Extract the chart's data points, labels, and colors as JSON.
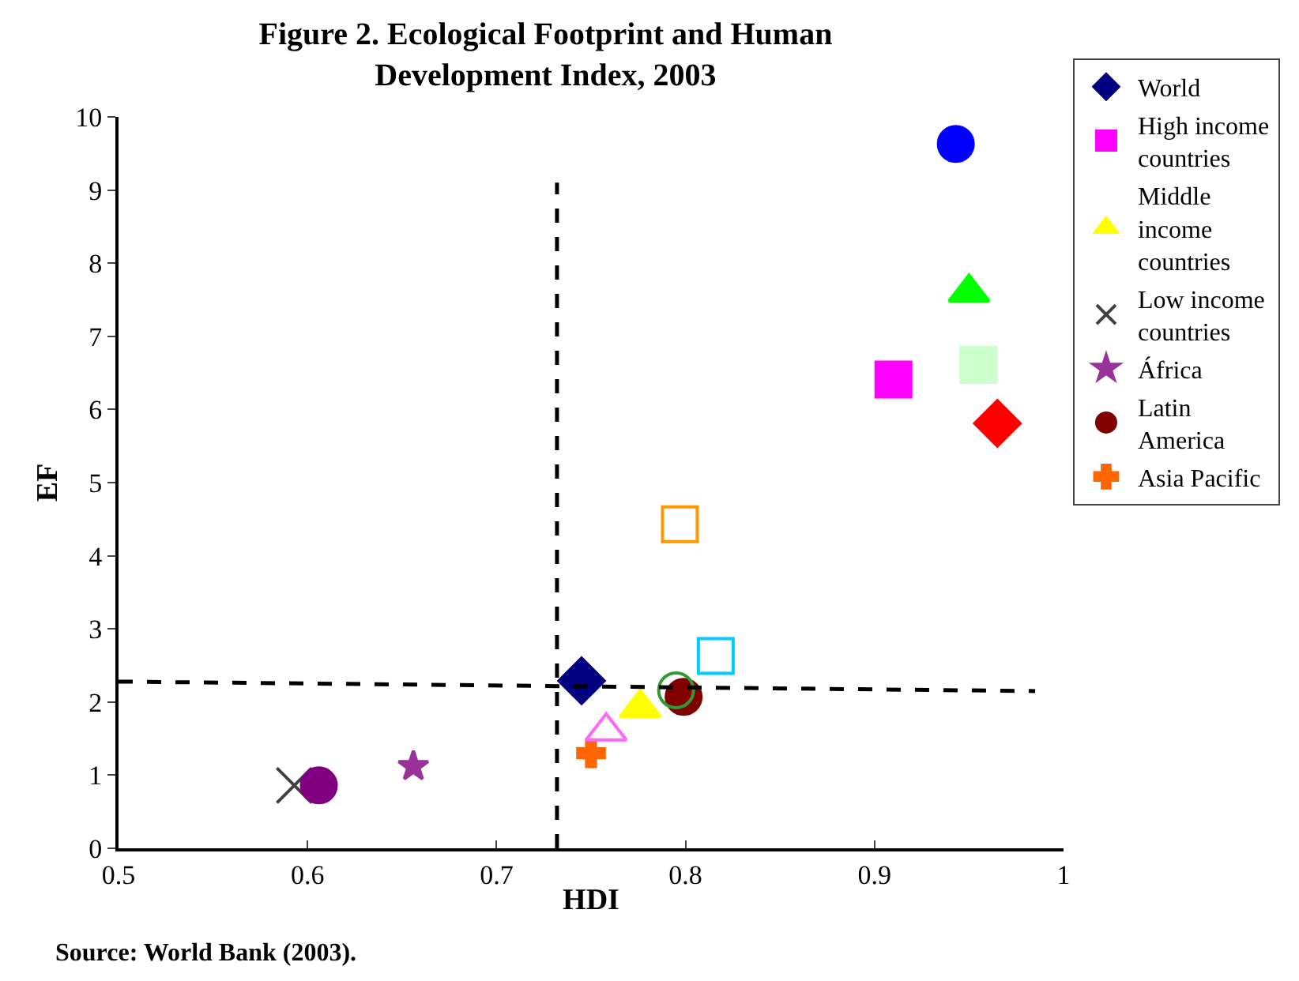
{
  "chart_data": {
    "type": "scatter",
    "title": "Figure 2. Ecological Footprint and Human Development Index, 2003",
    "xlabel": "HDI",
    "ylabel": "EF",
    "annotations": [
      "Source: World Bank (2003)."
    ],
    "xlim": [
      0.5,
      1.0
    ],
    "xticks": [
      0.5,
      0.6,
      0.7,
      0.8,
      0.9,
      1
    ],
    "ylim": [
      0,
      10
    ],
    "yticks": [
      0,
      1,
      2,
      3,
      4,
      5,
      6,
      7,
      8,
      9,
      10
    ],
    "legend": "right",
    "series": [
      {
        "name": "World",
        "color": "#000080",
        "marker": "diamond",
        "x": [
          0.745
        ],
        "values": [
          2.29
        ]
      },
      {
        "name": "High income countries",
        "color": "#ff00ff",
        "marker": "square",
        "x": [
          0.91
        ],
        "values": [
          6.41
        ]
      },
      {
        "name": "Middle income countries",
        "color": "#ffff00",
        "marker": "triangle",
        "x": [
          0.776
        ],
        "values": [
          1.92
        ]
      },
      {
        "name": "Low income countries",
        "color": "#404040",
        "marker": "x",
        "x": [
          0.593
        ],
        "values": [
          0.86
        ]
      },
      {
        "name": "África",
        "color": "#993399",
        "marker": "star",
        "x": [
          0.656
        ],
        "values": [
          1.12
        ]
      },
      {
        "name": "Latin America",
        "color": "#800000",
        "marker": "circle",
        "x": [
          0.799
        ],
        "values": [
          2.07
        ]
      },
      {
        "name": "Asia Pacific",
        "color": "#ff6600",
        "marker": "cross",
        "x": [
          0.75
        ],
        "values": [
          1.3
        ]
      },
      {
        "color": "#0000ff",
        "marker": "circle",
        "x": [
          0.943
        ],
        "values": [
          9.63
        ]
      },
      {
        "color": "#00ff00",
        "marker": "triangle",
        "x": [
          0.95
        ],
        "values": [
          7.6
        ]
      },
      {
        "color": "#ccffcc",
        "marker": "square",
        "x": [
          0.955
        ],
        "values": [
          6.61
        ]
      },
      {
        "color": "#ff0000",
        "marker": "diamond",
        "x": [
          0.965
        ],
        "values": [
          5.81
        ]
      },
      {
        "color": "#ff9900",
        "marker": "square-open",
        "x": [
          0.797
        ],
        "values": [
          4.43
        ]
      },
      {
        "color": "#00ccff",
        "marker": "square-open",
        "x": [
          0.816
        ],
        "values": [
          2.63
        ]
      },
      {
        "color": "#339933",
        "marker": "circle-open",
        "x": [
          0.795
        ],
        "values": [
          2.16
        ]
      },
      {
        "color": "#ff66ff",
        "marker": "triangle-open",
        "x": [
          0.758
        ],
        "values": [
          1.6
        ]
      },
      {
        "color": "#800080",
        "marker": "circle",
        "x": [
          0.606
        ],
        "values": [
          0.86
        ]
      },
      {
        "type": "line",
        "color": "#000000",
        "marker": "none",
        "line_style": "dashed",
        "x": [
          0.732,
          0.732
        ],
        "values": [
          0,
          9.1
        ]
      },
      {
        "type": "line",
        "color": "#000000",
        "marker": "none",
        "line_style": "dashed",
        "x": [
          0.5,
          0.985
        ],
        "values": [
          2.28,
          2.15
        ]
      }
    ]
  }
}
